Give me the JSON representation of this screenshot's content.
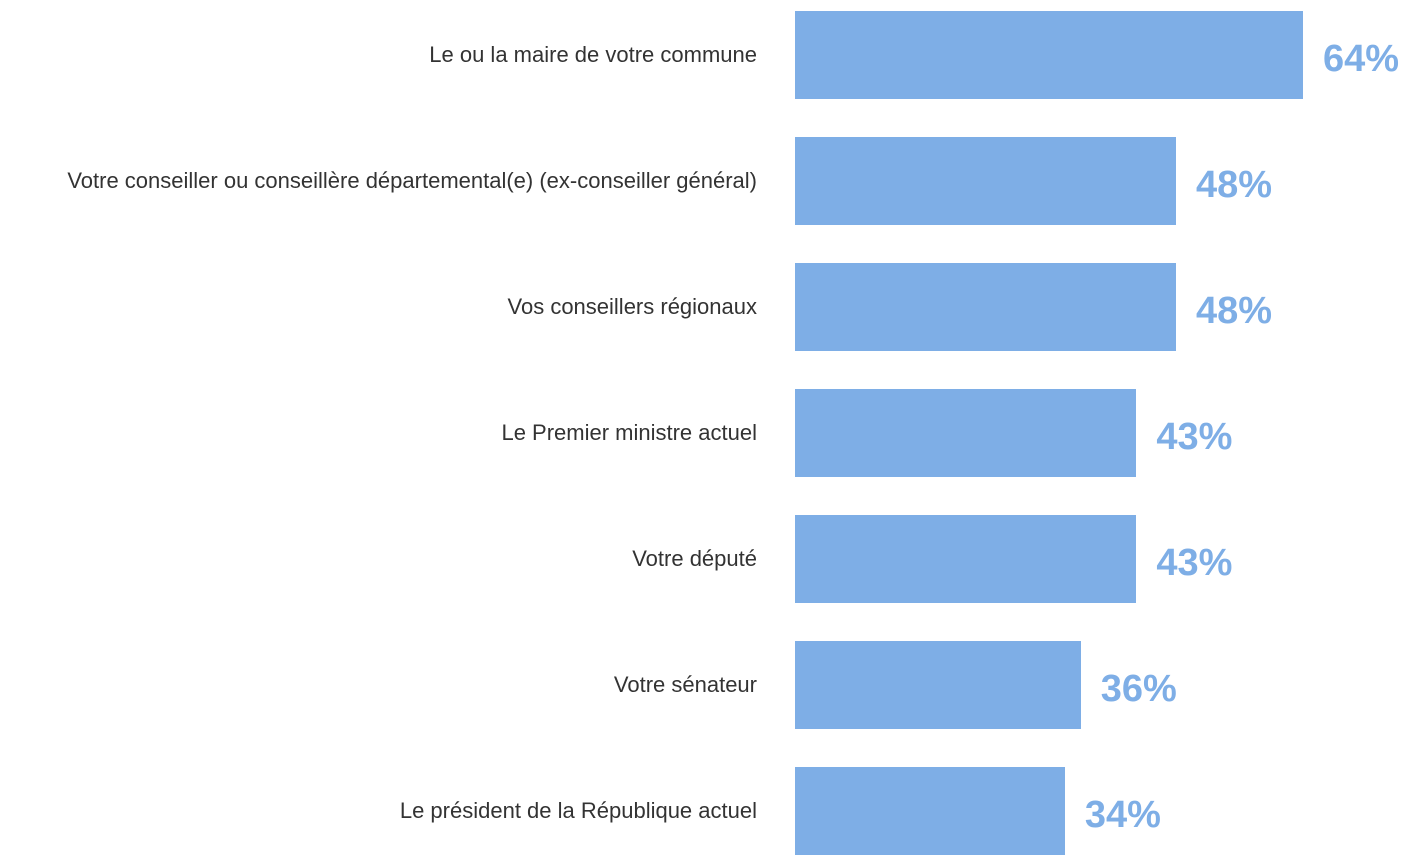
{
  "chart_data": {
    "type": "bar",
    "orientation": "horizontal",
    "categories": [
      "Le ou la maire de votre commune",
      "Votre conseiller ou conseillère départemental(e) (ex-conseiller général)",
      "Vos conseillers régionaux",
      "Le Premier ministre actuel",
      "Votre député",
      "Votre sénateur",
      "Le président de la République actuel"
    ],
    "values": [
      64,
      48,
      48,
      43,
      43,
      36,
      34
    ],
    "value_labels": [
      "64%",
      "48%",
      "48%",
      "43%",
      "43%",
      "36%",
      "34%"
    ],
    "color": "#7eaee6"
  }
}
